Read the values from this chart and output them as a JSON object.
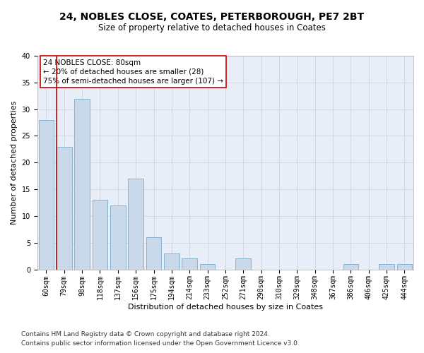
{
  "title1": "24, NOBLES CLOSE, COATES, PETERBOROUGH, PE7 2BT",
  "title2": "Size of property relative to detached houses in Coates",
  "xlabel": "Distribution of detached houses by size in Coates",
  "ylabel": "Number of detached properties",
  "categories": [
    "60sqm",
    "79sqm",
    "98sqm",
    "118sqm",
    "137sqm",
    "156sqm",
    "175sqm",
    "194sqm",
    "214sqm",
    "233sqm",
    "252sqm",
    "271sqm",
    "290sqm",
    "310sqm",
    "329sqm",
    "348sqm",
    "367sqm",
    "386sqm",
    "406sqm",
    "425sqm",
    "444sqm"
  ],
  "values": [
    28,
    23,
    32,
    13,
    12,
    17,
    6,
    3,
    2,
    1,
    0,
    2,
    0,
    0,
    0,
    0,
    0,
    1,
    0,
    1,
    1
  ],
  "bar_color": "#c9d9ea",
  "bar_edge_color": "#7aaac8",
  "vline_color": "#cc0000",
  "annotation_text": "24 NOBLES CLOSE: 80sqm\n← 20% of detached houses are smaller (28)\n75% of semi-detached houses are larger (107) →",
  "annotation_box_color": "#ffffff",
  "annotation_box_edge": "#cc0000",
  "ylim": [
    0,
    40
  ],
  "yticks": [
    0,
    5,
    10,
    15,
    20,
    25,
    30,
    35,
    40
  ],
  "grid_color": "#d0d8e8",
  "bg_color": "#e8eef8",
  "footer1": "Contains HM Land Registry data © Crown copyright and database right 2024.",
  "footer2": "Contains public sector information licensed under the Open Government Licence v3.0.",
  "title1_fontsize": 10,
  "title2_fontsize": 8.5,
  "xlabel_fontsize": 8,
  "ylabel_fontsize": 8,
  "tick_fontsize": 7,
  "annotation_fontsize": 7.5,
  "footer_fontsize": 6.5
}
